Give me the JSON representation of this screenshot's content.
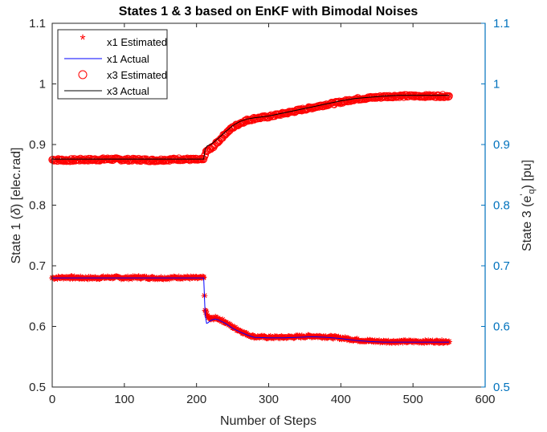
{
  "chart_data": {
    "type": "line",
    "title": "States 1 & 3 based on EnKF with Bimodal Noises",
    "xlabel": "Number of Steps",
    "ylabel_left": {
      "main": "State 1 (",
      "symbol": "δ",
      "rest": ") [elec.rad]"
    },
    "ylabel_right": {
      "main": "State 3 (e",
      "sup": "'",
      "sub": "q",
      "rest": ") [pu]"
    },
    "xlim": [
      0,
      600
    ],
    "ylim_left": [
      0.5,
      1.1
    ],
    "ylim_right": [
      0.5,
      1.1
    ],
    "x_ticks": [
      "0",
      "100",
      "200",
      "300",
      "400",
      "500",
      "600"
    ],
    "y_ticks_left": [
      "0.5",
      "0.6",
      "0.7",
      "0.8",
      "0.9",
      "1",
      "1.1"
    ],
    "y_ticks_right": [
      "0.5",
      "0.6",
      "0.7",
      "0.8",
      "0.9",
      "1",
      "1.1"
    ],
    "grid": false,
    "legend_position": "top-left",
    "colors": {
      "estimated": "#ff0000",
      "x1_actual": "#0000ff",
      "x3_actual": "#000000",
      "right_axis": "#0072bd",
      "axis": "#262626"
    },
    "series": [
      {
        "name": "x1 Estimated",
        "marker": "asterisk",
        "x": [
          0,
          20,
          40,
          60,
          80,
          100,
          120,
          140,
          160,
          180,
          200,
          210,
          211,
          212,
          214,
          216,
          220,
          225,
          230,
          240,
          250,
          260,
          270,
          280,
          300,
          320,
          340,
          360,
          380,
          400,
          420,
          440,
          460,
          480,
          500,
          520,
          540,
          550
        ],
        "y": [
          0.68,
          0.681,
          0.68,
          0.68,
          0.681,
          0.68,
          0.681,
          0.68,
          0.68,
          0.681,
          0.68,
          0.68,
          0.651,
          0.628,
          0.62,
          0.615,
          0.612,
          0.614,
          0.613,
          0.607,
          0.599,
          0.593,
          0.587,
          0.583,
          0.582,
          0.582,
          0.583,
          0.584,
          0.583,
          0.581,
          0.578,
          0.576,
          0.575,
          0.575,
          0.575,
          0.575,
          0.575,
          0.575
        ]
      },
      {
        "name": "x1 Actual",
        "marker": "none",
        "x": [
          0,
          100,
          200,
          210,
          212,
          214,
          216,
          220,
          225,
          230,
          240,
          250,
          260,
          270,
          280,
          300,
          320,
          340,
          360,
          380,
          400,
          420,
          440,
          460,
          480,
          500,
          520,
          540,
          550
        ],
        "y": [
          0.68,
          0.68,
          0.68,
          0.68,
          0.62,
          0.605,
          0.606,
          0.61,
          0.612,
          0.611,
          0.605,
          0.597,
          0.591,
          0.586,
          0.582,
          0.581,
          0.581,
          0.582,
          0.583,
          0.582,
          0.58,
          0.577,
          0.575,
          0.574,
          0.574,
          0.574,
          0.574,
          0.574,
          0.574
        ]
      },
      {
        "name": "x3 Estimated",
        "marker": "circle",
        "x": [
          0,
          20,
          40,
          60,
          80,
          100,
          120,
          140,
          160,
          180,
          200,
          210,
          212,
          215,
          220,
          230,
          240,
          250,
          260,
          270,
          280,
          300,
          320,
          340,
          360,
          380,
          400,
          420,
          440,
          460,
          480,
          500,
          520,
          540,
          550
        ],
        "y": [
          0.875,
          0.874,
          0.875,
          0.875,
          0.876,
          0.875,
          0.875,
          0.874,
          0.875,
          0.876,
          0.875,
          0.875,
          0.885,
          0.89,
          0.893,
          0.905,
          0.918,
          0.928,
          0.935,
          0.94,
          0.943,
          0.946,
          0.951,
          0.956,
          0.961,
          0.966,
          0.97,
          0.975,
          0.977,
          0.979,
          0.98,
          0.98,
          0.98,
          0.98,
          0.98
        ]
      },
      {
        "name": "x3 Actual",
        "marker": "none",
        "x": [
          0,
          100,
          200,
          210,
          212,
          215,
          220,
          230,
          240,
          250,
          260,
          270,
          280,
          300,
          320,
          340,
          360,
          380,
          400,
          420,
          440,
          460,
          480,
          500,
          520,
          540,
          550
        ],
        "y": [
          0.876,
          0.876,
          0.876,
          0.876,
          0.892,
          0.898,
          0.9,
          0.91,
          0.921,
          0.931,
          0.938,
          0.942,
          0.944,
          0.947,
          0.952,
          0.957,
          0.962,
          0.967,
          0.972,
          0.976,
          0.978,
          0.98,
          0.981,
          0.981,
          0.981,
          0.981,
          0.981
        ]
      }
    ]
  }
}
